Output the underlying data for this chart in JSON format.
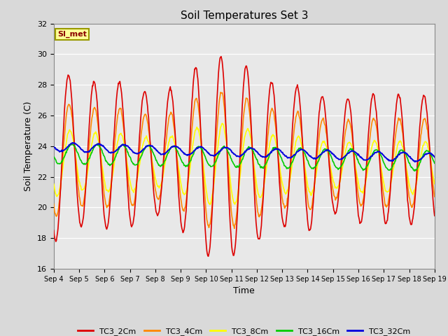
{
  "title": "Soil Temperatures Set 3",
  "xlabel": "Time",
  "ylabel": "Soil Temperature (C)",
  "ylim": [
    16,
    32
  ],
  "yticks": [
    16,
    18,
    20,
    22,
    24,
    26,
    28,
    30,
    32
  ],
  "background_color": "#d9d9d9",
  "plot_bg_color": "#e8e8e8",
  "legend_label": "SI_met",
  "series_colors": {
    "TC3_2Cm": "#dd0000",
    "TC3_4Cm": "#ff8800",
    "TC3_8Cm": "#ffff00",
    "TC3_16Cm": "#00cc00",
    "TC3_32Cm": "#0000dd"
  },
  "series_linewidths": {
    "TC3_2Cm": 1.2,
    "TC3_4Cm": 1.2,
    "TC3_8Cm": 1.2,
    "TC3_16Cm": 1.2,
    "TC3_32Cm": 1.4
  },
  "n_days": 15,
  "points_per_day": 48,
  "xtick_labels": [
    "Sep 4",
    "Sep 5",
    "Sep 6",
    "Sep 7",
    "Sep 8",
    "Sep 9",
    "Sep 10",
    "Sep 11",
    "Sep 12",
    "Sep 13",
    "Sep 14",
    "Sep 15",
    "Sep 16",
    "Sep 17",
    "Sep 18",
    "Sep 19"
  ]
}
